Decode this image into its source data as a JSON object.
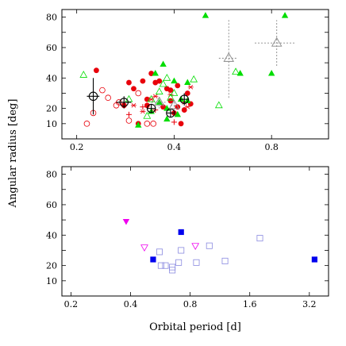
{
  "figure": {
    "ylabel": "Angular radius [deg]",
    "xlabel": "Orbital period [d]"
  },
  "chart_data": [
    {
      "type": "scatter",
      "xscale": "log",
      "xlim": [
        0.18,
        1.2
      ],
      "ylim": [
        0,
        85
      ],
      "xticks": [
        0.2,
        0.4,
        0.8
      ],
      "yticks": [
        10,
        20,
        30,
        40,
        50,
        60,
        70,
        80
      ],
      "ytick_labels": [
        "10",
        "20",
        "40",
        "60",
        "80"
      ],
      "ytick_labeled": [
        10,
        20,
        40,
        60,
        80
      ],
      "series": [
        {
          "marker": "circle-filled",
          "color": "#e8000b",
          "points": [
            [
              0.23,
              45
            ],
            [
              0.29,
              37
            ],
            [
              0.3,
              33
            ],
            [
              0.32,
              38
            ],
            [
              0.33,
              26
            ],
            [
              0.33,
              22
            ],
            [
              0.34,
              43
            ],
            [
              0.35,
              37
            ],
            [
              0.36,
              38
            ],
            [
              0.37,
              21
            ],
            [
              0.38,
              33
            ],
            [
              0.39,
              32
            ],
            [
              0.39,
              25
            ],
            [
              0.4,
              17
            ],
            [
              0.41,
              35
            ],
            [
              0.41,
              21
            ],
            [
              0.42,
              10
            ],
            [
              0.43,
              19
            ],
            [
              0.44,
              30
            ],
            [
              0.45,
              23
            ],
            [
              0.28,
              22
            ],
            [
              0.31,
              10
            ]
          ]
        },
        {
          "marker": "circle-open",
          "color": "#e8000b",
          "points": [
            [
              0.215,
              10
            ],
            [
              0.225,
              17
            ],
            [
              0.24,
              32
            ],
            [
              0.25,
              27
            ],
            [
              0.265,
              22
            ],
            [
              0.27,
              24
            ],
            [
              0.29,
              12
            ],
            [
              0.31,
              30
            ],
            [
              0.33,
              10
            ],
            [
              0.345,
              10
            ]
          ]
        },
        {
          "marker": "star",
          "color": "#e8000b",
          "points": [
            [
              0.3,
              22
            ],
            [
              0.34,
              26
            ],
            [
              0.37,
              21
            ],
            [
              0.39,
              29
            ],
            [
              0.43,
              24
            ],
            [
              0.44,
              21
            ],
            [
              0.45,
              34
            ],
            [
              0.32,
              18
            ],
            [
              0.35,
              28
            ]
          ]
        },
        {
          "marker": "plus",
          "color": "#e8000b",
          "points": [
            [
              0.29,
              16
            ],
            [
              0.32,
              21
            ],
            [
              0.35,
              19
            ],
            [
              0.38,
              20
            ],
            [
              0.4,
              11
            ]
          ]
        },
        {
          "marker": "triangle-filled",
          "color": "#00dd00",
          "points": [
            [
              0.31,
              9
            ],
            [
              0.34,
              18
            ],
            [
              0.35,
              43
            ],
            [
              0.36,
              24
            ],
            [
              0.37,
              49
            ],
            [
              0.38,
              20
            ],
            [
              0.38,
              13
            ],
            [
              0.4,
              38
            ],
            [
              0.41,
              16
            ],
            [
              0.42,
              26
            ],
            [
              0.44,
              25
            ],
            [
              0.44,
              37
            ],
            [
              0.5,
              81
            ],
            [
              0.64,
              43
            ],
            [
              0.8,
              43
            ],
            [
              0.88,
              81
            ]
          ]
        },
        {
          "marker": "triangle-open",
          "color": "#00dd00",
          "points": [
            [
              0.21,
              42
            ],
            [
              0.29,
              26
            ],
            [
              0.34,
              26
            ],
            [
              0.36,
              31
            ],
            [
              0.37,
              36
            ],
            [
              0.38,
              40
            ],
            [
              0.39,
              27
            ],
            [
              0.4,
              30
            ],
            [
              0.46,
              39
            ],
            [
              0.55,
              22
            ],
            [
              0.62,
              44
            ],
            [
              0.33,
              15
            ]
          ]
        },
        {
          "marker": "circle-errorbar",
          "color": "#000000",
          "points": [
            [
              0.225,
              28,
              0.01,
              12
            ],
            [
              0.28,
              24,
              0.015,
              4
            ],
            [
              0.34,
              20,
              0.01,
              3
            ],
            [
              0.39,
              17,
              0.01,
              3
            ],
            [
              0.43,
              26,
              0.015,
              4
            ]
          ]
        },
        {
          "marker": "triangle-errorbar",
          "color": "#888888",
          "points": [
            [
              0.36,
              24,
              0.02,
              4
            ],
            [
              0.59,
              53,
              0.04,
              26
            ],
            [
              0.83,
              63,
              0.12,
              15
            ],
            [
              0.4,
              22,
              0.01,
              3
            ]
          ]
        }
      ]
    },
    {
      "type": "scatter",
      "xscale": "log",
      "xlim": [
        0.18,
        4.0
      ],
      "ylim": [
        0,
        85
      ],
      "xticks": [
        0.2,
        0.4,
        0.8,
        1.6,
        3.2
      ],
      "yticks": [
        10,
        20,
        30,
        40,
        50,
        60,
        70,
        80
      ],
      "ytick_labels": [
        "10",
        "20",
        "40",
        "60",
        "80"
      ],
      "ytick_labeled": [
        10,
        20,
        40,
        60,
        80
      ],
      "series": [
        {
          "marker": "triangle-down-filled",
          "color": "#ee00ee",
          "points": [
            [
              0.38,
              49
            ]
          ]
        },
        {
          "marker": "triangle-down-open",
          "color": "#ee00ee",
          "points": [
            [
              0.47,
              32
            ],
            [
              0.85,
              33
            ]
          ]
        },
        {
          "marker": "square-filled",
          "color": "#0000ee",
          "points": [
            [
              0.52,
              24
            ],
            [
              0.72,
              42
            ],
            [
              3.4,
              24
            ]
          ]
        },
        {
          "marker": "square-open",
          "color": "#8a8ae0",
          "points": [
            [
              0.56,
              29
            ],
            [
              0.57,
              20
            ],
            [
              0.6,
              20
            ],
            [
              0.65,
              17
            ],
            [
              0.65,
              19
            ],
            [
              0.7,
              22
            ],
            [
              0.72,
              30
            ],
            [
              0.86,
              22
            ],
            [
              1.0,
              33
            ],
            [
              1.2,
              23
            ],
            [
              1.8,
              38
            ]
          ]
        }
      ]
    }
  ]
}
